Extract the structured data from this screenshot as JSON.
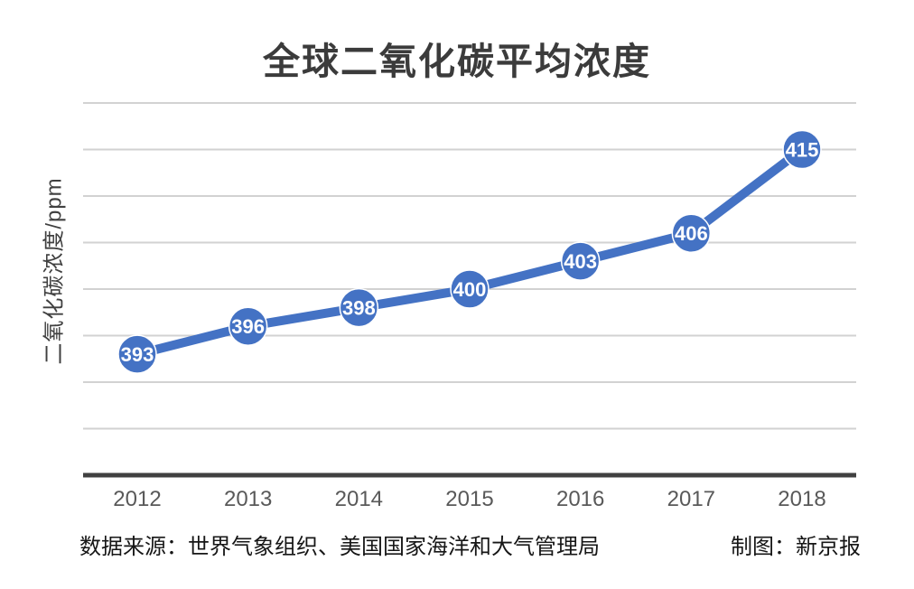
{
  "page": {
    "footer": {
      "source": "数据来源：世界气象组织、美国国家海洋和大气管理局",
      "credit": "制图：新京报"
    }
  },
  "chart_data": {
    "type": "line",
    "title": "全球二氧化碳平均浓度",
    "xlabel": "",
    "ylabel": "二氧化碳浓度/ppm",
    "categories": [
      "2012",
      "2013",
      "2014",
      "2015",
      "2016",
      "2017",
      "2018"
    ],
    "series": [
      {
        "name": "二氧化碳平均浓度",
        "values": [
          393,
          396,
          398,
          400,
          403,
          406,
          415
        ]
      }
    ],
    "unit": "ppm",
    "ylim": [
      380,
      420
    ],
    "grid_step": 5,
    "grid": true,
    "legend": "none",
    "data_labels": "inside-marker",
    "colors": {
      "line": "#4472c4",
      "marker_fill": "#4472c4",
      "marker_stroke": "#ffffff",
      "marker_label_text": "#ffffff",
      "gridline": "#d2d2d2",
      "axis_line": "#404040",
      "tick_label": "#595959",
      "title_text": "#3b3b3b",
      "ylabel_text": "#404040",
      "footer_text": "#161616"
    }
  }
}
